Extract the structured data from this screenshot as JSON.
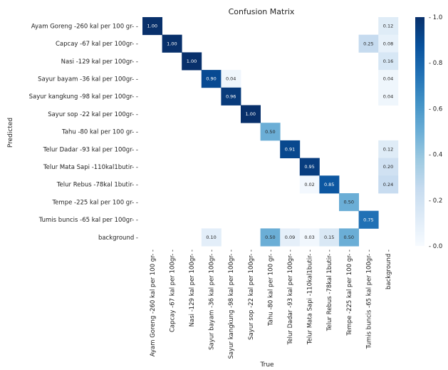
{
  "chart_data": {
    "type": "heatmap",
    "title": "Confusion Matrix",
    "xlabel": "True",
    "ylabel": "Predicted",
    "categories": [
      "Ayam Goreng -260 kal per 100 gr-",
      "Capcay -67 kal per 100gr-",
      "Nasi -129 kal per 100gr-",
      "Sayur bayam -36 kal per 100gr-",
      "Sayur kangkung -98 kal per 100gr-",
      "Sayur sop -22 kal per 100gr-",
      "Tahu -80 kal per 100 gr-",
      "Telur Dadar -93 kal per 100gr-",
      "Telur Mata Sapi -110kal1butir-",
      "Telur Rebus -78kal 1butir-",
      "Tempe -225 kal per 100 gr-",
      "Tumis buncis -65 kal per 100gr-",
      "background"
    ],
    "matrix": [
      [
        1.0,
        null,
        null,
        null,
        null,
        null,
        null,
        null,
        null,
        null,
        null,
        null,
        0.12
      ],
      [
        null,
        1.0,
        null,
        null,
        null,
        null,
        null,
        null,
        null,
        null,
        null,
        0.25,
        0.08
      ],
      [
        null,
        null,
        1.0,
        null,
        null,
        null,
        null,
        null,
        null,
        null,
        null,
        null,
        0.16
      ],
      [
        null,
        null,
        null,
        0.9,
        0.04,
        null,
        null,
        null,
        null,
        null,
        null,
        null,
        0.04
      ],
      [
        null,
        null,
        null,
        null,
        0.96,
        null,
        null,
        null,
        null,
        null,
        null,
        null,
        0.04
      ],
      [
        null,
        null,
        null,
        null,
        null,
        1.0,
        null,
        null,
        null,
        null,
        null,
        null,
        null
      ],
      [
        null,
        null,
        null,
        null,
        null,
        null,
        0.5,
        null,
        null,
        null,
        null,
        null,
        null
      ],
      [
        null,
        null,
        null,
        null,
        null,
        null,
        null,
        0.91,
        null,
        null,
        null,
        null,
        0.12
      ],
      [
        null,
        null,
        null,
        null,
        null,
        null,
        null,
        null,
        0.95,
        null,
        null,
        null,
        0.2
      ],
      [
        null,
        null,
        null,
        null,
        null,
        null,
        null,
        null,
        0.02,
        0.85,
        null,
        null,
        0.24
      ],
      [
        null,
        null,
        null,
        null,
        null,
        null,
        null,
        null,
        null,
        null,
        0.5,
        null,
        null
      ],
      [
        null,
        null,
        null,
        null,
        null,
        null,
        null,
        null,
        null,
        null,
        null,
        0.75,
        null
      ],
      [
        null,
        null,
        null,
        0.1,
        null,
        null,
        0.5,
        0.09,
        0.03,
        0.15,
        0.5,
        null,
        null
      ]
    ],
    "colorbar": {
      "range": [
        0,
        1
      ],
      "ticks": [
        "0.0",
        "0.2",
        "0.4",
        "0.6",
        "0.8",
        "1.0"
      ]
    },
    "colormap": {
      "low": "#f7fbff",
      "high": "#08306b"
    },
    "grid": false,
    "legend": "colorbar-right"
  }
}
